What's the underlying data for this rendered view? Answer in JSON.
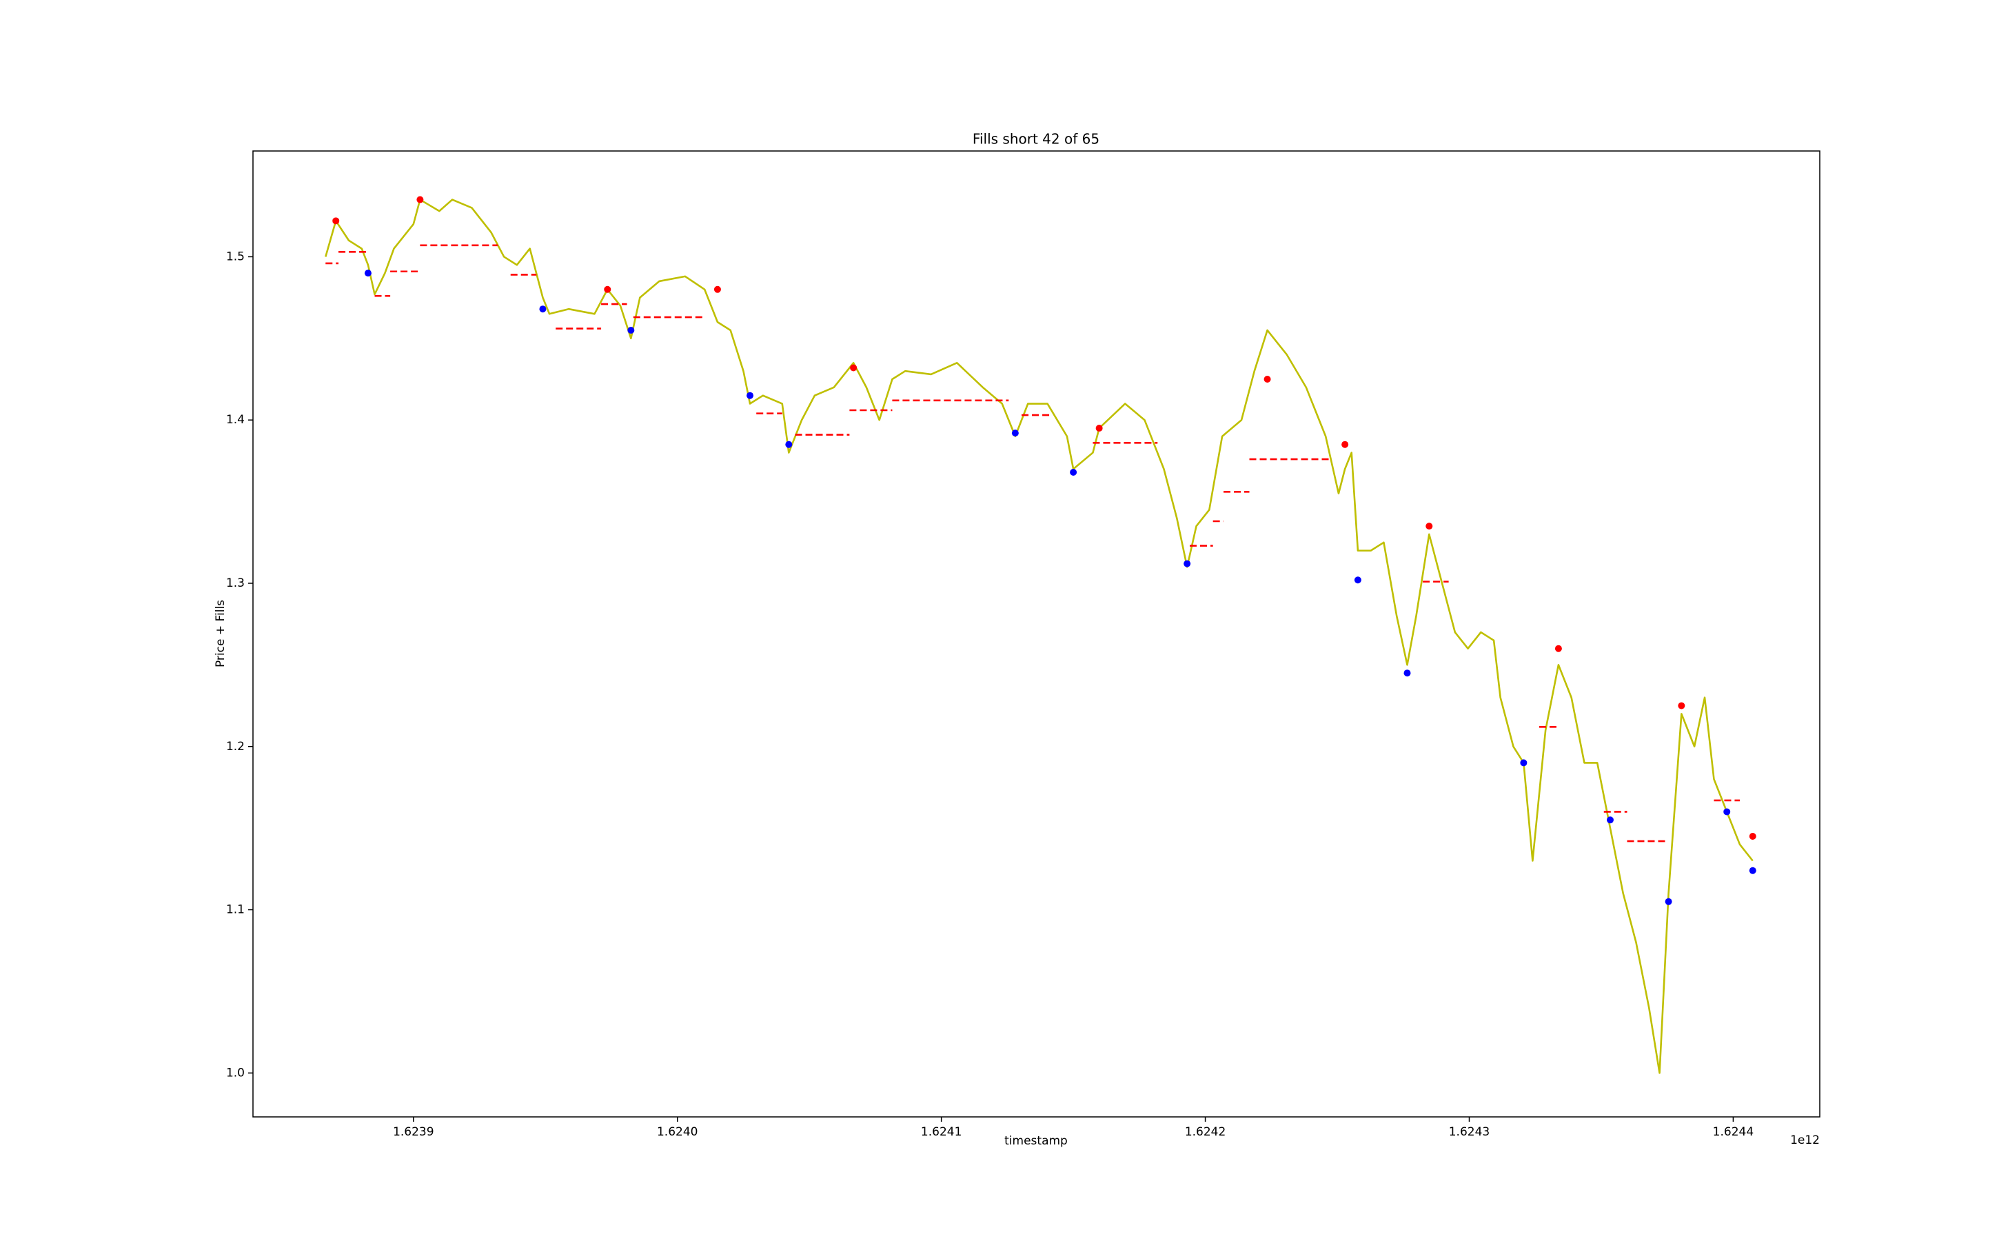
{
  "chart_data": {
    "type": "line",
    "title": "Fills short 42 of 65",
    "xlabel": "timestamp",
    "ylabel": "Price + Fills",
    "x_offset_label": "1e12",
    "xlim": [
      1623839200000,
      1624432800000
    ],
    "ylim": [
      0.9731,
      1.5648
    ],
    "xticks": [
      {
        "value": 1623900000000,
        "label": "1.6239"
      },
      {
        "value": 1624000000000,
        "label": "1.6240"
      },
      {
        "value": 1624100000000,
        "label": "1.6241"
      },
      {
        "value": 1624200000000,
        "label": "1.6242"
      },
      {
        "value": 1624300000000,
        "label": "1.6243"
      },
      {
        "value": 1624400000000,
        "label": "1.6244"
      }
    ],
    "yticks": [
      {
        "value": 1,
        "label": "1.0"
      },
      1.1,
      1.2,
      1.3,
      1.4,
      1.5
    ],
    "grid": false,
    "series": [
      {
        "style": "line",
        "color": "#bfbf00",
        "x": [
          1623866700000,
          1623870600000,
          1623875500000,
          1623880400000,
          1623882800000,
          1623885300000,
          1623889200000,
          1623892600000,
          1623900000000,
          1623902500000,
          1623909800000,
          1623914700000,
          1623922100000,
          1623929400000,
          1623934300000,
          1623939200000,
          1623944100000,
          1623949000000,
          1623951500000,
          1623958800000,
          1623968600000,
          1623973500000,
          1623978400000,
          1623982400000,
          1623985800000,
          1623993100000,
          1624002900000,
          1624010300000,
          1624015200000,
          1624020100000,
          1624025000000,
          1624027500000,
          1624032400000,
          1624039700000,
          1624042200000,
          1624047100000,
          1624052000000,
          1624059300000,
          1624066700000,
          1624071600000,
          1624076500000,
          1624081400000,
          1624086300000,
          1624096100000,
          1624105900000,
          1624115700000,
          1624123000000,
          1624128000000,
          1624132800000,
          1624140200000,
          1624147600000,
          1624150000000,
          1624157400000,
          1624159800000,
          1624169600000,
          1624177000000,
          1624184300000,
          1624189200000,
          1624193100000,
          1624196600000,
          1624201500000,
          1624206400000,
          1624213700000,
          1624218600000,
          1624223500000,
          1624230900000,
          1624238200000,
          1624245600000,
          1624250500000,
          1624252900000,
          1624255400000,
          1624257800000,
          1624262700000,
          1624267600000,
          1624272500000,
          1624276500000,
          1624279900000,
          1624284800000,
          1624289700000,
          1624294600000,
          1624299500000,
          1624304400000,
          1624309300000,
          1624311800000,
          1624316700000,
          1624320600000,
          1624324000000,
          1624328900000,
          1624333800000,
          1624338700000,
          1624343600000,
          1624348500000,
          1624353400000,
          1624358300000,
          1624363200000,
          1624368100000,
          1624372100000,
          1624375500000,
          1624380400000,
          1624385300000,
          1624389200000,
          1624392700000,
          1624397600000,
          1624402500000,
          1624407400000
        ],
        "values": [
          1.5,
          1.522,
          1.51,
          1.505,
          1.495,
          1.477,
          1.49,
          1.505,
          1.52,
          1.535,
          1.528,
          1.535,
          1.53,
          1.515,
          1.5,
          1.495,
          1.505,
          1.475,
          1.465,
          1.468,
          1.465,
          1.48,
          1.47,
          1.45,
          1.475,
          1.485,
          1.488,
          1.48,
          1.46,
          1.455,
          1.43,
          1.41,
          1.415,
          1.41,
          1.38,
          1.4,
          1.415,
          1.42,
          1.435,
          1.42,
          1.4,
          1.425,
          1.43,
          1.428,
          1.435,
          1.42,
          1.41,
          1.39,
          1.41,
          1.41,
          1.39,
          1.37,
          1.38,
          1.395,
          1.41,
          1.4,
          1.37,
          1.34,
          1.31,
          1.335,
          1.345,
          1.39,
          1.4,
          1.43,
          1.455,
          1.44,
          1.42,
          1.39,
          1.355,
          1.37,
          1.38,
          1.32,
          1.32,
          1.325,
          1.28,
          1.25,
          1.28,
          1.33,
          1.3,
          1.27,
          1.26,
          1.27,
          1.265,
          1.23,
          1.2,
          1.19,
          1.13,
          1.21,
          1.25,
          1.23,
          1.19,
          1.19,
          1.15,
          1.11,
          1.08,
          1.04,
          1.0,
          1.11,
          1.22,
          1.2,
          1.23,
          1.18,
          1.16,
          1.14,
          1.13
        ]
      },
      {
        "style": "levels",
        "color": "red",
        "x_start": [
          1623866700000,
          1623871600000,
          1623885300000,
          1623891200000,
          1623902500000,
          1623936800000,
          1623953900000,
          1623971100000,
          1623983300000,
          1624029900000,
          1624044600000,
          1624065200000,
          1624081400000,
          1624130400000,
          1624157400000,
          1624194100000,
          1624202900000,
          1624206900000,
          1624216700000,
          1624282400000,
          1624326500000,
          1624351000000,
          1624359800000,
          1624392700000
        ],
        "x_end": [
          1623871600000,
          1623882800000,
          1623891200000,
          1623902500000,
          1623931900000,
          1623946600000,
          1623971100000,
          1623980900000,
          1624010300000,
          1624039700000,
          1624065200000,
          1624081400000,
          1624125500000,
          1624141200000,
          1624181900000,
          1624202900000,
          1624206900000,
          1624216700000,
          1624248000000,
          1624292200000,
          1624333800000,
          1624359800000,
          1624374500000,
          1624402500000
        ],
        "values": [
          1.496,
          1.503,
          1.476,
          1.491,
          1.507,
          1.489,
          1.456,
          1.471,
          1.463,
          1.404,
          1.391,
          1.406,
          1.412,
          1.403,
          1.386,
          1.323,
          1.338,
          1.356,
          1.376,
          1.301,
          1.212,
          1.16,
          1.142,
          1.167
        ]
      },
      {
        "style": "markers",
        "color": "red",
        "x": [
          1623870600000,
          1623902500000,
          1623973500000,
          1624015200000,
          1624066700000,
          1624159800000,
          1624223500000,
          1624252900000,
          1624284800000,
          1624333800000,
          1624380400000,
          1624407400000
        ],
        "values": [
          1.522,
          1.535,
          1.48,
          1.48,
          1.432,
          1.395,
          1.425,
          1.385,
          1.335,
          1.26,
          1.225,
          1.145
        ]
      },
      {
        "style": "markers",
        "color": "blue",
        "x": [
          1623882800000,
          1623949000000,
          1623982400000,
          1624027500000,
          1624042200000,
          1624128000000,
          1624150000000,
          1624193100000,
          1624257800000,
          1624276500000,
          1624320600000,
          1624353400000,
          1624375500000,
          1624397600000,
          1624407400000
        ],
        "values": [
          1.49,
          1.468,
          1.455,
          1.415,
          1.385,
          1.392,
          1.368,
          1.312,
          1.302,
          1.245,
          1.19,
          1.155,
          1.105,
          1.16,
          1.124
        ]
      }
    ]
  }
}
